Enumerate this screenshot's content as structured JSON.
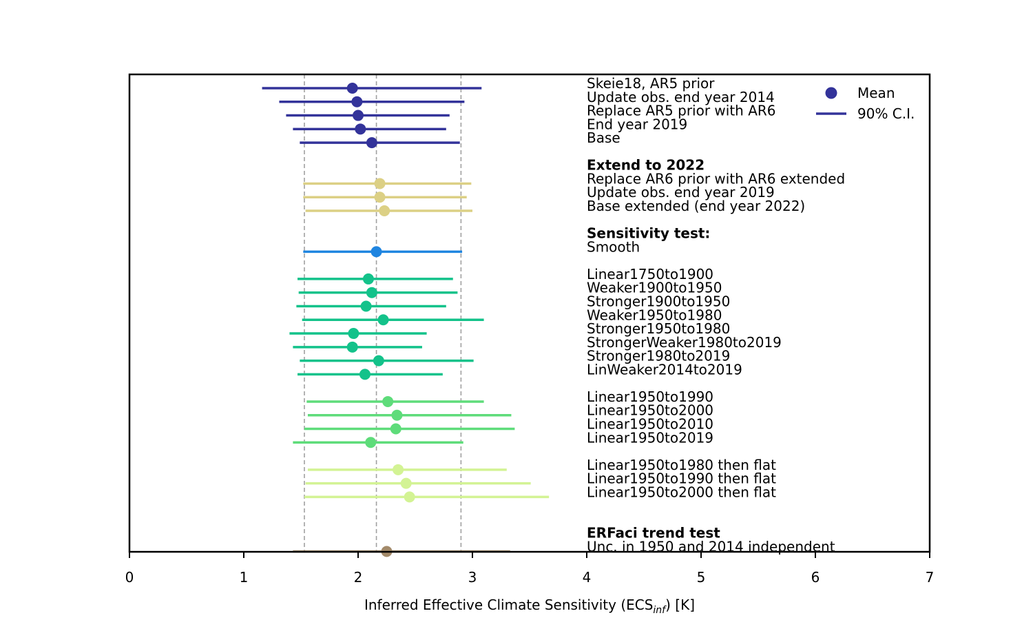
{
  "chart_data": {
    "type": "errorbar",
    "xlabel_prefix": "Inferred Effective Climate Sensitivity (ECS",
    "xlabel_sub": "inf",
    "xlabel_suffix": ") [K]",
    "xlim": [
      0,
      7
    ],
    "xticks": [
      "0",
      "1",
      "2",
      "3",
      "4",
      "5",
      "6",
      "7"
    ],
    "reference_lines": [
      1.53,
      2.16,
      2.9
    ],
    "legend": {
      "mean": "Mean",
      "ci": "90% C.I.",
      "placement": "top-right"
    },
    "colors": {
      "navy": "#33339a",
      "khaki": "#dcd085",
      "blue": "#1f85e0",
      "teal": "#13c28a",
      "green": "#5edc7a",
      "lime": "#d3f394",
      "brown": "#a38a6a",
      "ref": "#a0a0a0"
    },
    "headers": [
      {
        "row": 6,
        "text": "Extend to 2022"
      },
      {
        "row": 11,
        "text": "Sensitivity test:"
      },
      {
        "row": 33,
        "text": "ERFaci trend test"
      }
    ],
    "series": [
      {
        "row": 0,
        "label": "Skeie18, AR5 prior",
        "mean": 1.95,
        "lo": 1.16,
        "hi": 3.08,
        "color": "navy"
      },
      {
        "row": 1,
        "label": "Update obs. end year 2014",
        "mean": 1.99,
        "lo": 1.31,
        "hi": 2.93,
        "color": "navy"
      },
      {
        "row": 2,
        "label": "Replace AR5 prior with AR6",
        "mean": 2.0,
        "lo": 1.37,
        "hi": 2.8,
        "color": "navy"
      },
      {
        "row": 3,
        "label": "End year 2019",
        "mean": 2.02,
        "lo": 1.43,
        "hi": 2.77,
        "color": "navy"
      },
      {
        "row": 4,
        "label": "Base",
        "mean": 2.12,
        "lo": 1.49,
        "hi": 2.89,
        "color": "navy"
      },
      {
        "row": 7,
        "label": "Replace AR6 prior with AR6 extended",
        "mean": 2.19,
        "lo": 1.52,
        "hi": 2.99,
        "color": "khaki"
      },
      {
        "row": 8,
        "label": "Update obs. end year 2019",
        "mean": 2.19,
        "lo": 1.52,
        "hi": 2.95,
        "color": "khaki"
      },
      {
        "row": 9,
        "label": "Base extended (end year 2022)",
        "mean": 2.23,
        "lo": 1.54,
        "hi": 3.0,
        "color": "khaki"
      },
      {
        "row": 12,
        "label": "Smooth",
        "mean": 2.16,
        "lo": 1.52,
        "hi": 2.91,
        "color": "blue"
      },
      {
        "row": 14,
        "label": "Linear1750to1900",
        "mean": 2.09,
        "lo": 1.47,
        "hi": 2.83,
        "color": "teal"
      },
      {
        "row": 15,
        "label": "Weaker1900to1950",
        "mean": 2.12,
        "lo": 1.48,
        "hi": 2.87,
        "color": "teal"
      },
      {
        "row": 16,
        "label": "Stronger1900to1950",
        "mean": 2.07,
        "lo": 1.46,
        "hi": 2.77,
        "color": "teal"
      },
      {
        "row": 17,
        "label": "Weaker1950to1980",
        "mean": 2.22,
        "lo": 1.51,
        "hi": 3.1,
        "color": "teal"
      },
      {
        "row": 18,
        "label": "Stronger1950to1980",
        "mean": 1.96,
        "lo": 1.4,
        "hi": 2.6,
        "color": "teal"
      },
      {
        "row": 19,
        "label": "StrongerWeaker1980to2019",
        "mean": 1.95,
        "lo": 1.43,
        "hi": 2.56,
        "color": "teal"
      },
      {
        "row": 20,
        "label": "Stronger1980to2019",
        "mean": 2.18,
        "lo": 1.49,
        "hi": 3.01,
        "color": "teal"
      },
      {
        "row": 21,
        "label": "LinWeaker2014to2019",
        "mean": 2.06,
        "lo": 1.47,
        "hi": 2.74,
        "color": "teal"
      },
      {
        "row": 23,
        "label": "Linear1950to1990",
        "mean": 2.26,
        "lo": 1.55,
        "hi": 3.1,
        "color": "green"
      },
      {
        "row": 24,
        "label": "Linear1950to2000",
        "mean": 2.34,
        "lo": 1.56,
        "hi": 3.34,
        "color": "green"
      },
      {
        "row": 25,
        "label": "Linear1950to2010",
        "mean": 2.33,
        "lo": 1.53,
        "hi": 3.37,
        "color": "green"
      },
      {
        "row": 26,
        "label": "Linear1950to2019",
        "mean": 2.11,
        "lo": 1.43,
        "hi": 2.92,
        "color": "green"
      },
      {
        "row": 28,
        "label": "Linear1950to1980 then flat",
        "mean": 2.35,
        "lo": 1.56,
        "hi": 3.3,
        "color": "lime"
      },
      {
        "row": 29,
        "label": "Linear1950to1990 then flat",
        "mean": 2.42,
        "lo": 1.54,
        "hi": 3.51,
        "color": "lime"
      },
      {
        "row": 30,
        "label": "Linear1950to2000 then flat",
        "mean": 2.45,
        "lo": 1.53,
        "hi": 3.67,
        "color": "lime"
      },
      {
        "row": 34,
        "label": "Unc. in 1950 and 2014 independent",
        "mean": 2.25,
        "lo": 1.43,
        "hi": 3.33,
        "color": "brown"
      }
    ]
  }
}
